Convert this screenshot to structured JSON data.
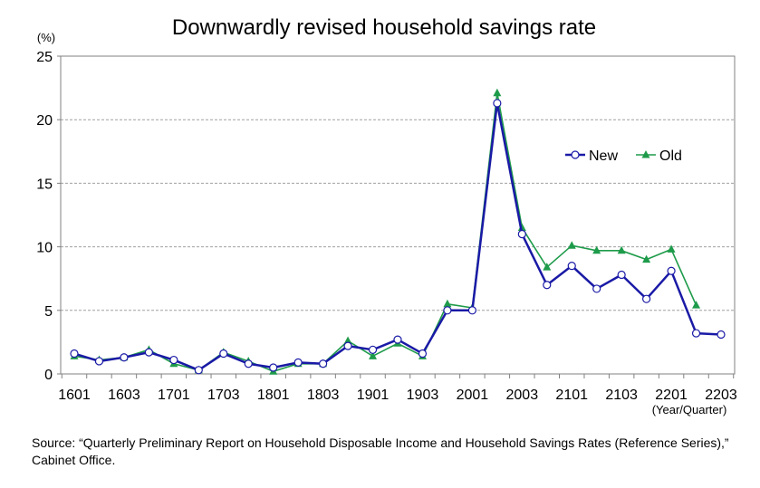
{
  "chart_data": {
    "type": "line",
    "title": "Downwardly revised household savings rate",
    "ylabel": "(%)",
    "xlabel": "(Year/Quarter)",
    "ylim": [
      0,
      25
    ],
    "yticks": [
      0,
      5,
      10,
      15,
      20,
      25
    ],
    "grid": true,
    "legend_position": "upper-right",
    "x": [
      "1601",
      "1602",
      "1603",
      "1604",
      "1701",
      "1702",
      "1703",
      "1704",
      "1801",
      "1802",
      "1803",
      "1804",
      "1901",
      "1902",
      "1903",
      "1904",
      "2001",
      "2002",
      "2003",
      "2004",
      "2101",
      "2102",
      "2103",
      "2104",
      "2201",
      "2202",
      "2203"
    ],
    "xtick_labels": [
      "1601",
      "1603",
      "1701",
      "1703",
      "1801",
      "1803",
      "1901",
      "1903",
      "2001",
      "2003",
      "2101",
      "2103",
      "2201",
      "2203"
    ],
    "series": [
      {
        "name": "New",
        "color": "#1a1aa6",
        "marker": "circle",
        "values": [
          1.6,
          1.0,
          1.3,
          1.7,
          1.1,
          0.3,
          1.6,
          0.8,
          0.5,
          0.9,
          0.8,
          2.2,
          1.9,
          2.7,
          1.6,
          5.0,
          5.0,
          21.3,
          11.0,
          7.0,
          8.5,
          6.7,
          7.8,
          5.9,
          8.1,
          3.2,
          3.1
        ]
      },
      {
        "name": "Old",
        "color": "#1e9b4a",
        "marker": "triangle",
        "values": [
          1.4,
          1.1,
          1.3,
          1.9,
          0.8,
          0.3,
          1.7,
          1.0,
          0.2,
          0.8,
          0.8,
          2.6,
          1.4,
          2.4,
          1.4,
          5.5,
          5.2,
          22.1,
          11.5,
          8.4,
          10.1,
          9.7,
          9.7,
          9.0,
          9.8,
          5.4,
          null
        ]
      }
    ]
  },
  "source_note": "Source: “Quarterly Preliminary Report on Household Disposable Income and Household Savings Rates (Reference Series),” Cabinet Office."
}
